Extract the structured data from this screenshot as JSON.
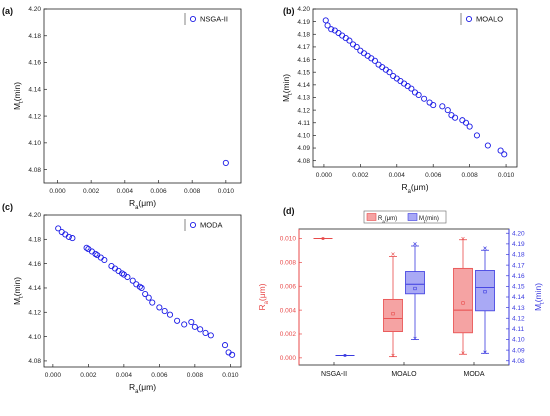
{
  "chart_data": [
    {
      "panel": "(a)",
      "type": "scatter",
      "title": "",
      "xlabel": "Ra(μm)",
      "xlabel_main": "R",
      "xlabel_sub": "a",
      "xlabel_unit": "(μm)",
      "ylabel": "Mt(min)",
      "ylabel_main": "M",
      "ylabel_sub": "t",
      "ylabel_unit": "(min)",
      "xlim": [
        -0.0008,
        0.0109
      ],
      "ylim": [
        4.07,
        4.2
      ],
      "xticks": [
        0,
        0.002,
        0.004,
        0.006,
        0.008,
        0.01
      ],
      "xtick_labels": [
        "0.000",
        "0.002",
        "0.004",
        "0.006",
        "0.008",
        "0.010"
      ],
      "yticks": [
        4.08,
        4.1,
        4.12,
        4.14,
        4.16,
        4.18,
        4.2
      ],
      "ytick_labels": [
        "4.08",
        "4.10",
        "4.12",
        "4.14",
        "4.16",
        "4.18",
        "4.20"
      ],
      "legend_position": "top-right",
      "series": [
        {
          "name": "NSGA-II",
          "points": [
            [
              0.01,
              4.085
            ]
          ]
        }
      ]
    },
    {
      "panel": "(b)",
      "type": "scatter",
      "title": "",
      "xlabel": "Ra(μm)",
      "xlabel_main": "R",
      "xlabel_sub": "a",
      "xlabel_unit": "(μm)",
      "ylabel": "Mt(min)",
      "ylabel_main": "M",
      "ylabel_sub": "t",
      "ylabel_unit": "(min)",
      "xlim": [
        -0.0006,
        0.0106
      ],
      "ylim": [
        4.075,
        4.2
      ],
      "xticks": [
        0,
        0.002,
        0.004,
        0.006,
        0.008,
        0.01
      ],
      "xtick_labels": [
        "0.000",
        "0.002",
        "0.004",
        "0.006",
        "0.008",
        "0.010"
      ],
      "yticks": [
        4.08,
        4.09,
        4.1,
        4.11,
        4.12,
        4.13,
        4.14,
        4.15,
        4.16,
        4.17,
        4.18,
        4.19,
        4.2
      ],
      "ytick_labels": [
        "4.08",
        "4.09",
        "4.10",
        "4.11",
        "4.12",
        "4.13",
        "4.14",
        "4.15",
        "4.16",
        "4.17",
        "4.18",
        "4.19",
        "4.20"
      ],
      "legend_position": "top-right",
      "series": [
        {
          "name": "MOALO",
          "points": [
            [
              0.0001,
              4.191
            ],
            [
              0.0002,
              4.187
            ],
            [
              0.0004,
              4.184
            ],
            [
              0.0006,
              4.183
            ],
            [
              0.0008,
              4.181
            ],
            [
              0.001,
              4.179
            ],
            [
              0.0012,
              4.177
            ],
            [
              0.0014,
              4.175
            ],
            [
              0.0016,
              4.172
            ],
            [
              0.0018,
              4.17
            ],
            [
              0.002,
              4.167
            ],
            [
              0.0022,
              4.165
            ],
            [
              0.0024,
              4.163
            ],
            [
              0.0026,
              4.161
            ],
            [
              0.0028,
              4.159
            ],
            [
              0.003,
              4.156
            ],
            [
              0.0032,
              4.154
            ],
            [
              0.0034,
              4.152
            ],
            [
              0.0036,
              4.15
            ],
            [
              0.0038,
              4.147
            ],
            [
              0.004,
              4.145
            ],
            [
              0.0042,
              4.143
            ],
            [
              0.0044,
              4.141
            ],
            [
              0.0046,
              4.139
            ],
            [
              0.0048,
              4.137
            ],
            [
              0.005,
              4.134
            ],
            [
              0.0052,
              4.132
            ],
            [
              0.0055,
              4.129
            ],
            [
              0.0058,
              4.126
            ],
            [
              0.006,
              4.124
            ],
            [
              0.0065,
              4.123
            ],
            [
              0.0068,
              4.12
            ],
            [
              0.007,
              4.116
            ],
            [
              0.0072,
              4.114
            ],
            [
              0.0076,
              4.112
            ],
            [
              0.0078,
              4.11
            ],
            [
              0.008,
              4.107
            ],
            [
              0.0084,
              4.1
            ],
            [
              0.009,
              4.092
            ],
            [
              0.0097,
              4.088
            ],
            [
              0.0099,
              4.085
            ]
          ]
        }
      ]
    },
    {
      "panel": "(c)",
      "type": "scatter",
      "title": "",
      "xlabel": "Ra(μm)",
      "xlabel_main": "R",
      "xlabel_sub": "a",
      "xlabel_unit": "(μm)",
      "ylabel": "Mt(min)",
      "ylabel_main": "M",
      "ylabel_sub": "t",
      "ylabel_unit": "(min)",
      "xlim": [
        -0.0005,
        0.0106
      ],
      "ylim": [
        4.075,
        4.2
      ],
      "xticks": [
        0,
        0.002,
        0.004,
        0.006,
        0.008,
        0.01
      ],
      "xtick_labels": [
        "0.000",
        "0.002",
        "0.004",
        "0.006",
        "0.008",
        "0.010"
      ],
      "yticks": [
        4.08,
        4.1,
        4.12,
        4.14,
        4.16,
        4.18,
        4.2
      ],
      "ytick_labels": [
        "4.08",
        "4.10",
        "4.12",
        "4.14",
        "4.16",
        "4.18",
        "4.20"
      ],
      "legend_position": "top-right",
      "series": [
        {
          "name": "MODA",
          "points": [
            [
              0.0003,
              4.189
            ],
            [
              0.0005,
              4.186
            ],
            [
              0.0007,
              4.184
            ],
            [
              0.0009,
              4.182
            ],
            [
              0.0011,
              4.181
            ],
            [
              0.0019,
              4.173
            ],
            [
              0.002,
              4.172
            ],
            [
              0.0022,
              4.17
            ],
            [
              0.0024,
              4.168
            ],
            [
              0.0025,
              4.167
            ],
            [
              0.0027,
              4.165
            ],
            [
              0.0029,
              4.163
            ],
            [
              0.0033,
              4.158
            ],
            [
              0.0035,
              4.156
            ],
            [
              0.0037,
              4.154
            ],
            [
              0.0039,
              4.152
            ],
            [
              0.004,
              4.151
            ],
            [
              0.0042,
              4.149
            ],
            [
              0.0045,
              4.146
            ],
            [
              0.0047,
              4.143
            ],
            [
              0.0049,
              4.141
            ],
            [
              0.005,
              4.14
            ],
            [
              0.0052,
              4.135
            ],
            [
              0.0054,
              4.132
            ],
            [
              0.0056,
              4.128
            ],
            [
              0.006,
              4.124
            ],
            [
              0.0063,
              4.121
            ],
            [
              0.0066,
              4.118
            ],
            [
              0.007,
              4.113
            ],
            [
              0.0074,
              4.11
            ],
            [
              0.0078,
              4.112
            ],
            [
              0.008,
              4.108
            ],
            [
              0.0083,
              4.106
            ],
            [
              0.0086,
              4.103
            ],
            [
              0.0089,
              4.101
            ],
            [
              0.0097,
              4.093
            ],
            [
              0.0099,
              4.087
            ],
            [
              0.0101,
              4.085
            ]
          ]
        }
      ]
    },
    {
      "panel": "(d)",
      "type": "box",
      "title": "",
      "categories": [
        "NSGA-II",
        "MOALO",
        "MODA"
      ],
      "left_axis": {
        "label": "Ra(μm)",
        "label_main": "R",
        "label_sub": "a",
        "label_unit": "(μm)",
        "lim": [
          -0.0006,
          0.0108
        ],
        "ticks": [
          0,
          0.002,
          0.004,
          0.006,
          0.008,
          0.01
        ],
        "tick_labels": [
          "0.000",
          "0.002",
          "0.004",
          "0.006",
          "0.008",
          "0.010"
        ],
        "color": "#e84a4a"
      },
      "right_axis": {
        "label": "Mt(min)",
        "label_main": "M",
        "label_sub": "t",
        "label_unit": "(min)",
        "lim": [
          4.076,
          4.204
        ],
        "ticks": [
          4.08,
          4.09,
          4.1,
          4.11,
          4.12,
          4.13,
          4.14,
          4.15,
          4.16,
          4.17,
          4.18,
          4.19,
          4.2
        ],
        "tick_labels": [
          "4.08",
          "4.09",
          "4.10",
          "4.11",
          "4.12",
          "4.13",
          "4.14",
          "4.15",
          "4.16",
          "4.17",
          "4.18",
          "4.19",
          "4.20"
        ],
        "color": "#3a3ae0"
      },
      "legend_position": "top",
      "series": [
        {
          "name": "Ra(μm)",
          "name_main": "R",
          "name_sub": "a",
          "name_unit": "(μm)",
          "axis": "left",
          "color": "#e84a4a",
          "fill": "#f5a3a3",
          "boxes": [
            {
              "category": "NSGA-II",
              "min": 0.01,
              "q1": 0.01,
              "median": 0.01,
              "q3": 0.01,
              "max": 0.01,
              "mean": 0.01,
              "line_only": true
            },
            {
              "category": "MOALO",
              "min": 0.0001,
              "q1": 0.0022,
              "median": 0.0033,
              "q3": 0.0049,
              "max": 0.0085,
              "mean": 0.0037,
              "extreme_low": 0.0002,
              "extreme_high": 0.0087
            },
            {
              "category": "MODA",
              "min": 0.0003,
              "q1": 0.0021,
              "median": 0.004,
              "q3": 0.0075,
              "max": 0.0099,
              "mean": 0.0046,
              "extreme_low": 0.0004,
              "extreme_high": 0.01
            }
          ]
        },
        {
          "name": "Mt(min)",
          "name_main": "M",
          "name_sub": "t",
          "name_unit": "(min)",
          "axis": "right",
          "color": "#3a3ae0",
          "fill": "#a9a9f5",
          "boxes": [
            {
              "category": "NSGA-II",
              "min": 4.085,
              "q1": 4.085,
              "median": 4.085,
              "q3": 4.085,
              "max": 4.085,
              "mean": 4.085,
              "line_only": true
            },
            {
              "category": "MOALO",
              "min": 4.1,
              "q1": 4.143,
              "median": 4.152,
              "q3": 4.164,
              "max": 4.188,
              "mean": 4.148,
              "extreme_low": 4.101,
              "extreme_high": 4.19
            },
            {
              "category": "MODA",
              "min": 4.087,
              "q1": 4.127,
              "median": 4.149,
              "q3": 4.165,
              "max": 4.184,
              "mean": 4.145,
              "extreme_low": 4.088,
              "extreme_high": 4.186
            }
          ]
        }
      ]
    }
  ]
}
